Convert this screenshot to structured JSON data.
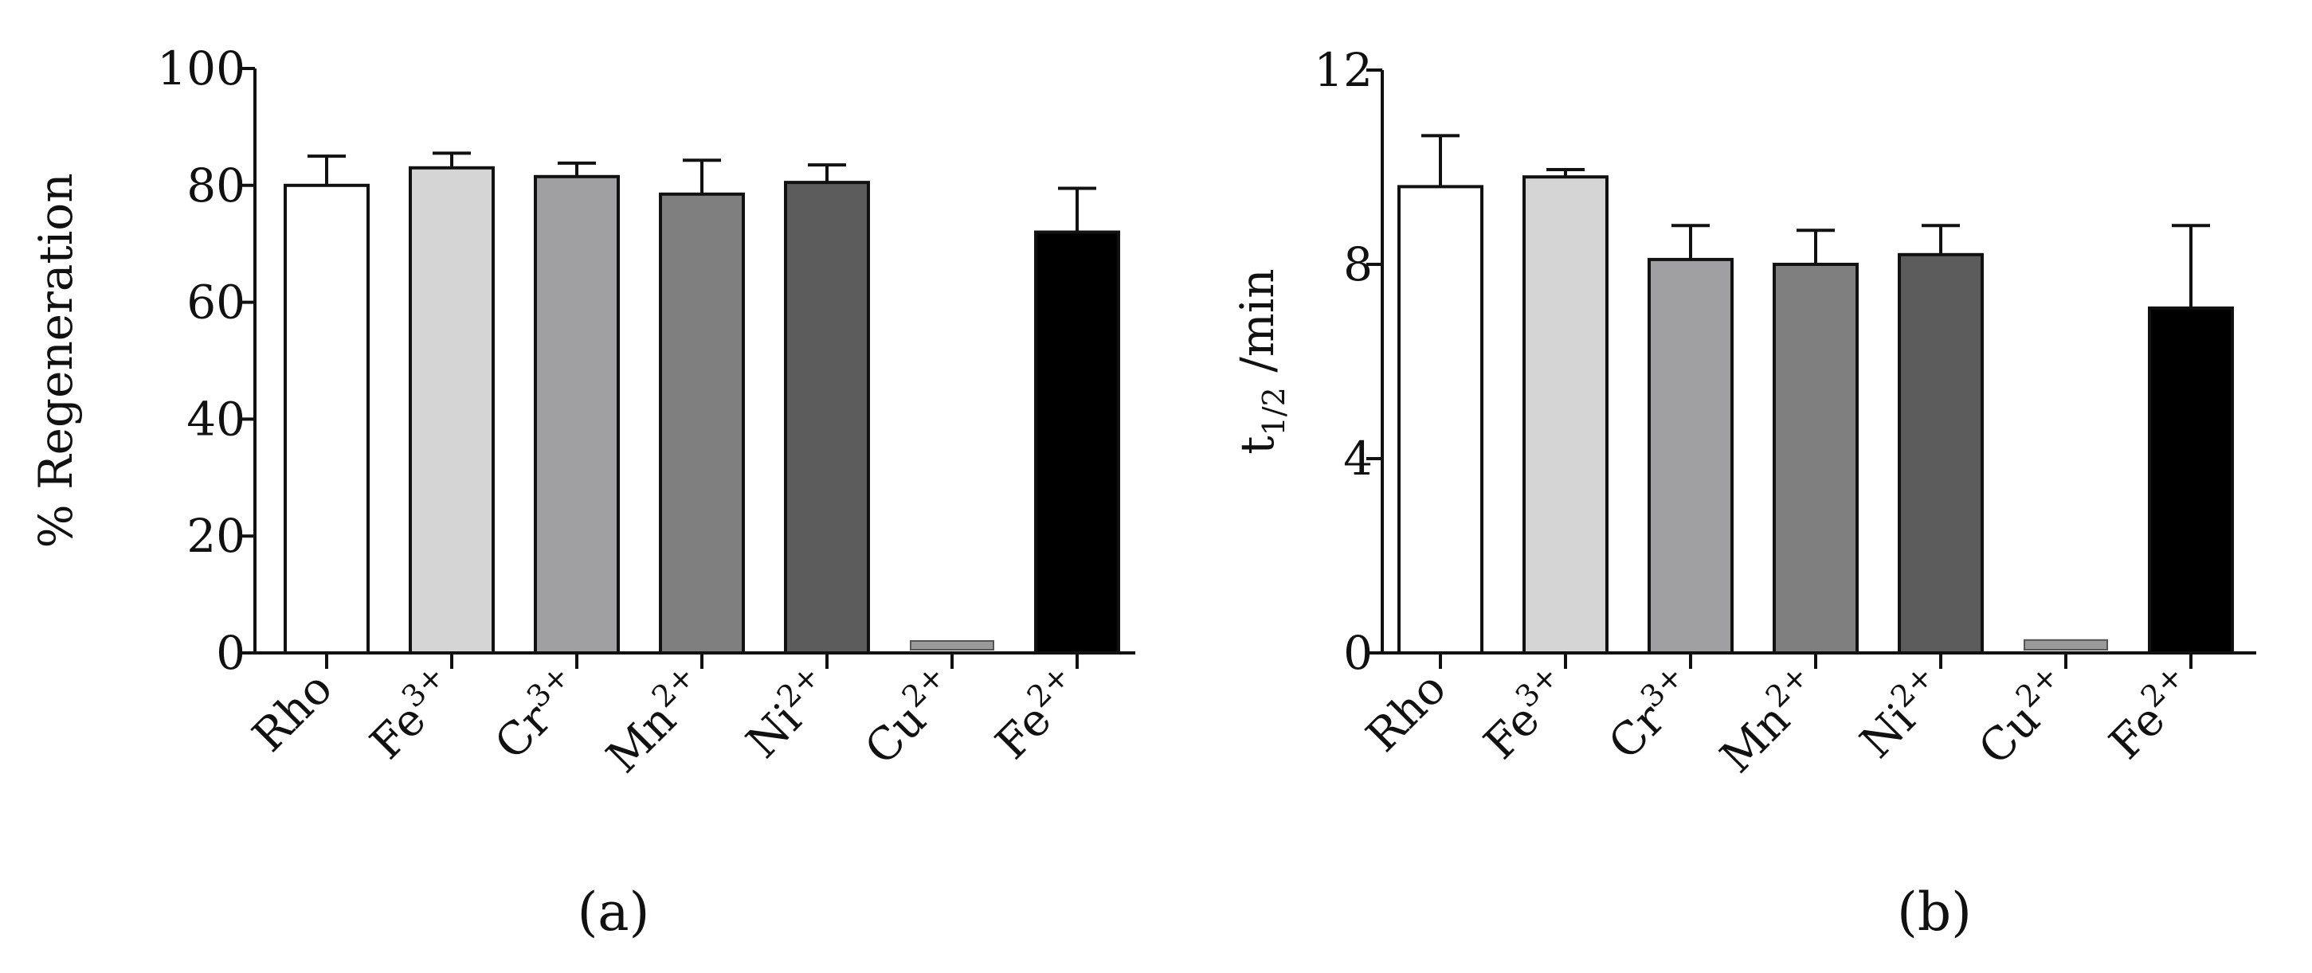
{
  "chart_data": [
    {
      "type": "bar",
      "panel_label": "(a)",
      "ylabel": "% Regeneration",
      "ylim": [
        0,
        100
      ],
      "yticks": [
        0,
        20,
        40,
        60,
        80,
        100
      ],
      "categories": [
        {
          "base": "Rho",
          "sup": ""
        },
        {
          "base": "Fe",
          "sup": "3+"
        },
        {
          "base": "Cr",
          "sup": "3+"
        },
        {
          "base": "Mn",
          "sup": "2+"
        },
        {
          "base": "Ni",
          "sup": "2+"
        },
        {
          "base": "Cu",
          "sup": "2+"
        },
        {
          "base": "Fe",
          "sup": "2+"
        }
      ],
      "values": [
        80,
        83,
        81.5,
        78.5,
        80.5,
        1.5,
        72
      ],
      "errors": [
        5,
        2.5,
        2.3,
        5.8,
        3,
        0,
        7.5
      ]
    },
    {
      "type": "bar",
      "panel_label": "(b)",
      "ylabel": {
        "base": "t",
        "sub": "1/2",
        "rest": " /min"
      },
      "ylim": [
        0,
        12
      ],
      "yticks": [
        0,
        4,
        8,
        12
      ],
      "categories": [
        {
          "base": "Rho",
          "sup": ""
        },
        {
          "base": "Fe",
          "sup": "3+"
        },
        {
          "base": "Cr",
          "sup": "3+"
        },
        {
          "base": "Mn",
          "sup": "2+"
        },
        {
          "base": "Ni",
          "sup": "2+"
        },
        {
          "base": "Cu",
          "sup": "2+"
        },
        {
          "base": "Fe",
          "sup": "2+"
        }
      ],
      "values": [
        9.6,
        9.8,
        8.1,
        8.0,
        8.2,
        0.2,
        7.1
      ],
      "errors": [
        1.05,
        0.15,
        0.7,
        0.7,
        0.6,
        0,
        1.7
      ]
    }
  ],
  "colors": [
    "#ffffff",
    "#d5d5d5",
    "#a0a0a3",
    "#7f7f7f",
    "#5c5c5c",
    "#9a9a9a",
    "#000000"
  ]
}
